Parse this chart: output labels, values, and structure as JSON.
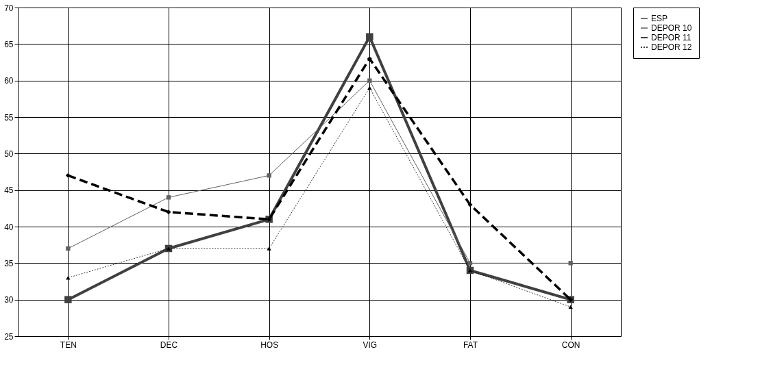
{
  "chart_data": {
    "type": "line",
    "categories": [
      "TEN",
      "DEC",
      "HOS",
      "VIG",
      "FAT",
      "CON"
    ],
    "series": [
      {
        "name": "ESP",
        "color": "#404040",
        "marker": "square",
        "line_style": "solid",
        "values": [
          30,
          37,
          41,
          66,
          34,
          30
        ]
      },
      {
        "name": "DEPOR 10",
        "color": "#606060",
        "marker": "square",
        "line_style": "solid",
        "values": [
          37,
          44,
          47,
          60,
          35,
          35
        ]
      },
      {
        "name": "DEPOR 11",
        "color": "#000000",
        "marker": "diamond",
        "line_style": "dashed",
        "values": [
          47,
          42,
          41,
          63,
          43,
          30
        ]
      },
      {
        "name": "DEPOR 12",
        "color": "#000000",
        "marker": "triangle",
        "line_style": "dotted",
        "values": [
          33,
          37,
          37,
          59,
          34,
          29
        ]
      }
    ],
    "ylim": [
      25,
      70
    ],
    "yticks": [
      25,
      30,
      35,
      40,
      45,
      50,
      55,
      60,
      65,
      70
    ],
    "grid": true,
    "legend": "right"
  }
}
